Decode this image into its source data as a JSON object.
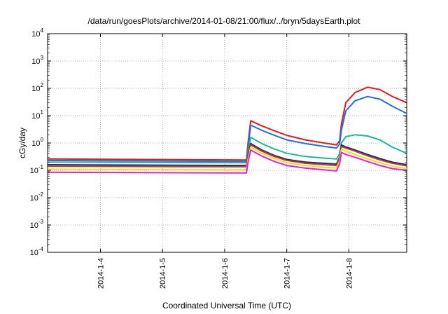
{
  "chart_data": {
    "type": "line",
    "title": "/data/run/goesPlots/archive/2014-01-08/21:00/flux/../bryn/5daysEarth.plot",
    "xlabel": "Coordinated Universal Time (UTC)",
    "ylabel": "cGy/day",
    "y_scale": "log",
    "ylim": [
      0.0001,
      10000
    ],
    "xlim_days": [
      3.15,
      8.93
    ],
    "grid": true,
    "legend": "none",
    "x_ticks": [
      {
        "day": 4,
        "label": "2014-1-4"
      },
      {
        "day": 5,
        "label": "2014-1-5"
      },
      {
        "day": 6,
        "label": "2014-1-6"
      },
      {
        "day": 7,
        "label": "2014-1-7"
      },
      {
        "day": 8,
        "label": "2014-1-8"
      }
    ],
    "y_ticks": [
      {
        "exp": -4,
        "base": "10",
        "sup": "-4"
      },
      {
        "exp": -3,
        "base": "10",
        "sup": "-3"
      },
      {
        "exp": -2,
        "base": "10",
        "sup": "-2"
      },
      {
        "exp": -1,
        "base": "10",
        "sup": "-1"
      },
      {
        "exp": 0,
        "base": "10",
        "sup": "0"
      },
      {
        "exp": 1,
        "base": "10",
        "sup": "1"
      },
      {
        "exp": 2,
        "base": "10",
        "sup": "2"
      },
      {
        "exp": 3,
        "base": "10",
        "sup": "3"
      },
      {
        "exp": 4,
        "base": "10",
        "sup": "4"
      }
    ],
    "series": [
      {
        "color": "#e8191c",
        "x": [
          3.15,
          6.35,
          6.38,
          6.42,
          6.6,
          6.8,
          7.0,
          7.3,
          7.6,
          7.8,
          7.85,
          7.88,
          7.95,
          8.1,
          8.3,
          8.5,
          8.7,
          8.93
        ],
        "y": [
          0.26,
          0.24,
          1.2,
          6.5,
          4.2,
          2.8,
          1.9,
          1.3,
          1.0,
          0.85,
          1.2,
          5.0,
          30,
          70,
          110,
          90,
          50,
          30
        ]
      },
      {
        "color": "#1e6fe0",
        "x": [
          3.15,
          6.35,
          6.38,
          6.42,
          6.6,
          6.8,
          7.0,
          7.3,
          7.6,
          7.8,
          7.85,
          7.88,
          7.95,
          8.1,
          8.3,
          8.5,
          8.7,
          8.93
        ],
        "y": [
          0.23,
          0.21,
          0.8,
          4.5,
          2.9,
          1.9,
          1.3,
          0.95,
          0.75,
          0.65,
          0.9,
          3.0,
          15,
          35,
          50,
          40,
          22,
          12
        ]
      },
      {
        "color": "#1ab99a",
        "x": [
          3.15,
          6.35,
          6.38,
          6.42,
          6.6,
          6.8,
          7.0,
          7.3,
          7.6,
          7.8,
          7.85,
          7.88,
          7.95,
          8.1,
          8.3,
          8.5,
          8.7,
          8.93
        ],
        "y": [
          0.2,
          0.19,
          0.5,
          1.6,
          0.95,
          0.6,
          0.42,
          0.32,
          0.28,
          0.26,
          0.4,
          1.0,
          1.7,
          2.0,
          1.8,
          1.3,
          0.7,
          0.42
        ]
      },
      {
        "color": "#1f2a7a",
        "x": [
          3.15,
          6.35,
          6.38,
          6.42,
          6.6,
          6.8,
          7.0,
          7.3,
          7.6,
          7.8,
          7.85,
          7.88,
          7.95,
          8.1,
          8.3,
          8.5,
          8.7,
          8.93
        ],
        "y": [
          0.16,
          0.15,
          0.4,
          0.95,
          0.55,
          0.35,
          0.25,
          0.2,
          0.18,
          0.17,
          0.3,
          0.85,
          0.72,
          0.55,
          0.38,
          0.27,
          0.2,
          0.16
        ]
      },
      {
        "color": "#c0392b",
        "x": [
          3.15,
          6.35,
          6.38,
          6.42,
          6.6,
          6.8,
          7.0,
          7.3,
          7.6,
          7.8,
          7.85,
          7.88,
          7.95,
          8.1,
          8.3,
          8.5,
          8.7,
          8.93
        ],
        "y": [
          0.14,
          0.135,
          0.35,
          0.85,
          0.5,
          0.32,
          0.23,
          0.18,
          0.16,
          0.15,
          0.27,
          0.75,
          0.65,
          0.5,
          0.34,
          0.24,
          0.18,
          0.145
        ]
      },
      {
        "color": "#f0e20c",
        "x": [
          3.15,
          6.35,
          6.38,
          6.42,
          6.6,
          6.8,
          7.0,
          7.3,
          7.6,
          7.8,
          7.85,
          7.88,
          7.95,
          8.1,
          8.3,
          8.5,
          8.7,
          8.93
        ],
        "y": [
          0.11,
          0.105,
          0.28,
          0.7,
          0.42,
          0.27,
          0.19,
          0.15,
          0.13,
          0.12,
          0.22,
          0.6,
          0.5,
          0.38,
          0.26,
          0.19,
          0.14,
          0.115
        ]
      },
      {
        "color": "#e61ce6",
        "x": [
          3.15,
          6.35,
          6.38,
          6.42,
          6.6,
          6.8,
          7.0,
          7.3,
          7.6,
          7.8,
          7.85,
          7.88,
          7.95,
          8.1,
          8.3,
          8.5,
          8.7,
          8.93
        ],
        "y": [
          0.085,
          0.08,
          0.22,
          0.55,
          0.33,
          0.21,
          0.15,
          0.12,
          0.105,
          0.095,
          0.17,
          0.45,
          0.38,
          0.3,
          0.21,
          0.15,
          0.115,
          0.1
        ]
      }
    ]
  }
}
